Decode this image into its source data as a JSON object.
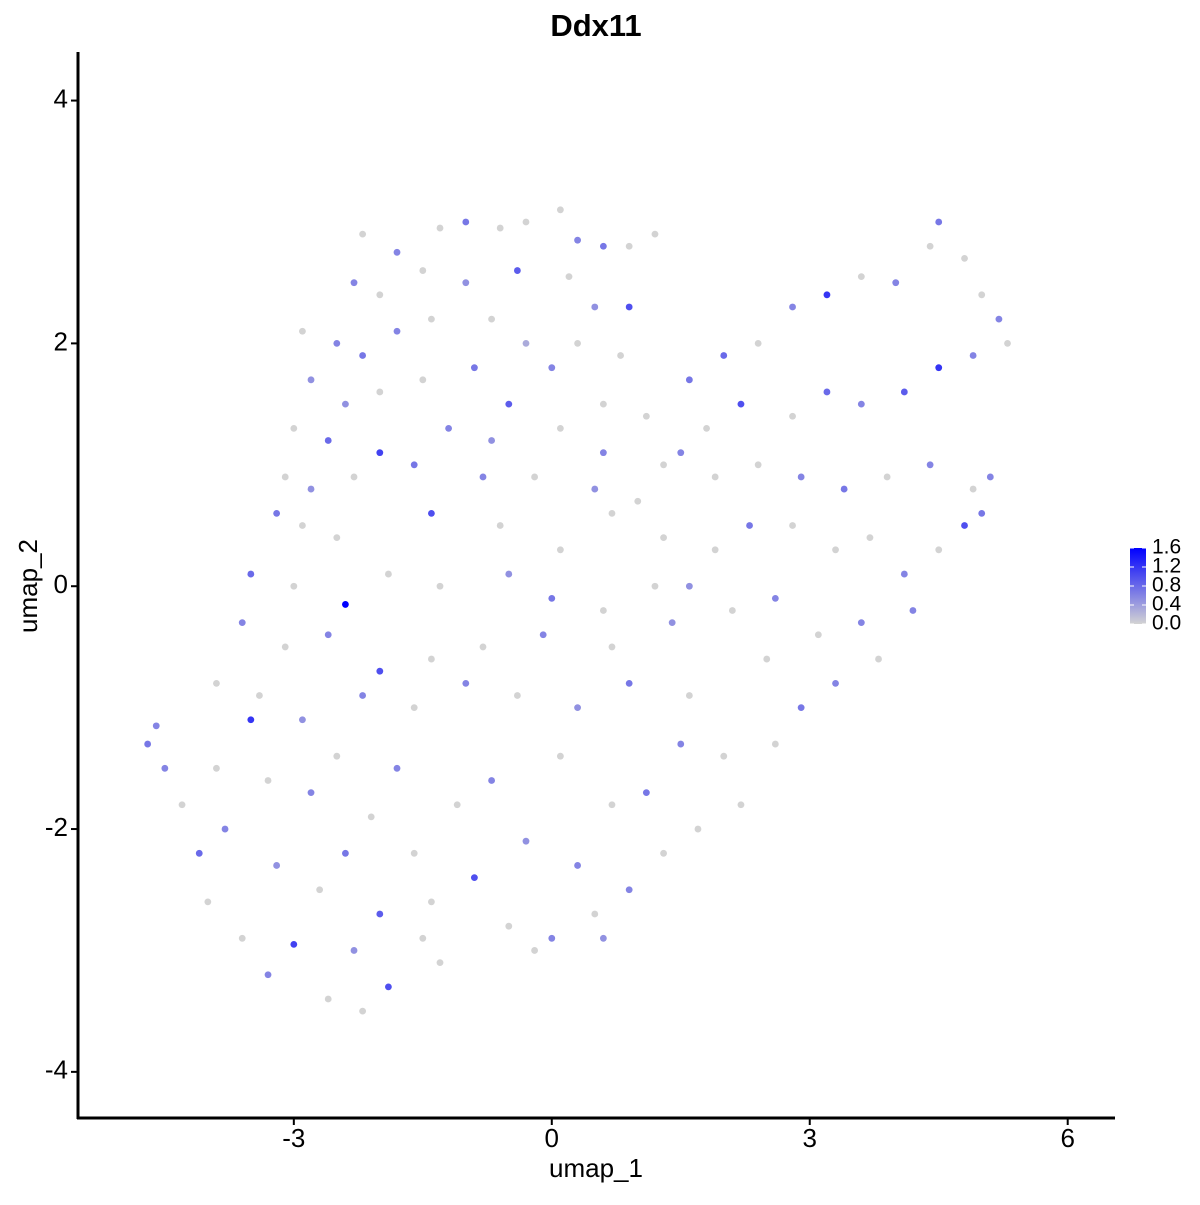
{
  "chart_data": {
    "type": "scatter",
    "title": "Ddx11",
    "x_label": "umap_1",
    "y_label": "umap_2",
    "x": [
      -2.2,
      -1.8,
      -1.3,
      -1.0,
      -0.6,
      -0.3,
      0.1,
      0.3,
      0.6,
      0.9,
      1.2,
      -2.3,
      -2.0,
      -1.5,
      -1.0,
      -0.4,
      0.2,
      0.5,
      0.9,
      -2.9,
      -2.5,
      -2.2,
      -1.8,
      -1.4,
      -0.7,
      -0.3,
      0.3,
      0.8,
      -2.8,
      -2.4,
      -2.0,
      -1.5,
      -0.9,
      -0.5,
      0.0,
      0.6,
      1.1,
      -3.0,
      -2.6,
      -2.0,
      -1.2,
      -0.7,
      0.1,
      0.6,
      1.3,
      -3.1,
      -2.8,
      -2.3,
      -1.6,
      -0.8,
      -0.2,
      0.5,
      1.0,
      -3.2,
      -2.9,
      -2.5,
      -1.4,
      -0.6,
      0.1,
      0.7,
      1.3,
      -3.5,
      -3.0,
      -2.4,
      -1.9,
      -1.3,
      -0.5,
      0.0,
      0.6,
      1.2,
      -3.6,
      -3.1,
      -2.6,
      -2.0,
      -1.4,
      -0.8,
      -0.1,
      0.7,
      1.4,
      -3.9,
      -3.4,
      -2.9,
      -2.2,
      -1.6,
      -1.0,
      -0.4,
      0.3,
      0.9,
      1.6,
      -4.7,
      -4.6,
      -4.5,
      -4.3,
      -4.1,
      -3.9,
      -3.8,
      -3.5,
      -3.3,
      -3.2,
      -3.0,
      -2.8,
      -2.7,
      -2.5,
      -2.4,
      -2.3,
      -2.1,
      -2.0,
      -1.9,
      -1.8,
      -1.6,
      -1.4,
      -1.3,
      -1.1,
      -0.9,
      -0.7,
      -0.5,
      -0.3,
      0.0,
      0.1,
      0.3,
      0.5,
      0.7,
      0.9,
      1.1,
      1.3,
      1.5,
      1.7,
      2.0,
      2.2,
      -4.0,
      -3.6,
      -3.3,
      -2.6,
      -2.2,
      -1.5,
      -0.2,
      0.6,
      1.6,
      2.0,
      2.4,
      2.8,
      3.2,
      3.6,
      4.0,
      4.4,
      4.5,
      4.8,
      5.0,
      5.2,
      5.3,
      4.9,
      4.5,
      4.1,
      3.6,
      3.2,
      2.8,
      2.2,
      1.8,
      1.5,
      1.9,
      2.4,
      2.9,
      3.4,
      3.9,
      4.4,
      4.9,
      5.1,
      5.0,
      4.8,
      4.5,
      4.1,
      3.7,
      3.3,
      2.8,
      2.3,
      1.9,
      1.6,
      2.1,
      2.6,
      3.1,
      3.6,
      4.2,
      3.8,
      3.3,
      2.9,
      2.6,
      2.5
    ],
    "y": [
      2.9,
      2.75,
      2.95,
      3.0,
      2.95,
      3.0,
      3.1,
      2.85,
      2.8,
      2.8,
      2.9,
      2.5,
      2.4,
      2.6,
      2.5,
      2.6,
      2.55,
      2.3,
      2.3,
      2.1,
      2.0,
      1.9,
      2.1,
      2.2,
      2.2,
      2.0,
      2.0,
      1.9,
      1.7,
      1.5,
      1.6,
      1.7,
      1.8,
      1.5,
      1.8,
      1.5,
      1.4,
      1.3,
      1.2,
      1.1,
      1.3,
      1.2,
      1.3,
      1.1,
      1.0,
      0.9,
      0.8,
      0.9,
      1.0,
      0.9,
      0.9,
      0.8,
      0.7,
      0.6,
      0.5,
      0.4,
      0.6,
      0.5,
      0.3,
      0.6,
      0.4,
      0.1,
      0.0,
      -0.15,
      0.1,
      0.0,
      0.1,
      -0.1,
      -0.2,
      0.0,
      -0.3,
      -0.5,
      -0.4,
      -0.7,
      -0.6,
      -0.5,
      -0.4,
      -0.5,
      -0.3,
      -0.8,
      -0.9,
      -1.1,
      -0.9,
      -1.0,
      -0.8,
      -0.9,
      -1.0,
      -0.8,
      -0.9,
      -1.3,
      -1.15,
      -1.5,
      -1.8,
      -2.2,
      -1.5,
      -2.0,
      -1.1,
      -1.6,
      -2.3,
      -2.95,
      -1.7,
      -2.5,
      -1.4,
      -2.2,
      -3.0,
      -1.9,
      -2.7,
      -3.3,
      -1.5,
      -2.2,
      -2.6,
      -3.1,
      -1.8,
      -2.4,
      -1.6,
      -2.8,
      -2.1,
      -2.9,
      -1.4,
      -2.3,
      -2.7,
      -1.8,
      -2.5,
      -1.7,
      -2.2,
      -1.3,
      -2.0,
      -1.4,
      -1.8,
      -2.6,
      -2.9,
      -3.2,
      -3.4,
      -3.5,
      -2.9,
      -3.0,
      -2.9,
      1.7,
      1.9,
      2.0,
      2.3,
      2.4,
      2.55,
      2.5,
      2.8,
      3.0,
      2.7,
      2.4,
      2.2,
      2.0,
      1.9,
      1.8,
      1.6,
      1.5,
      1.6,
      1.4,
      1.5,
      1.3,
      1.1,
      0.9,
      1.0,
      0.9,
      0.8,
      0.9,
      1.0,
      0.8,
      0.9,
      0.6,
      0.5,
      0.3,
      0.1,
      0.4,
      0.3,
      0.5,
      0.5,
      0.3,
      0.0,
      -0.2,
      -0.1,
      -0.4,
      -0.3,
      -0.2,
      -0.6,
      -0.8,
      -1.0,
      -1.3,
      -0.6
    ],
    "values": [
      0,
      0.6,
      0,
      0.7,
      0,
      0,
      0,
      0.6,
      0.7,
      0,
      0,
      0.6,
      0,
      0,
      0.5,
      0.9,
      0,
      0.5,
      1.0,
      0,
      0.6,
      0.7,
      0.6,
      0,
      0,
      0.3,
      0,
      0,
      0.5,
      0.5,
      0,
      0,
      0.7,
      0.9,
      0.6,
      0,
      0,
      0,
      0.8,
      1.1,
      0.6,
      0.5,
      0,
      0.6,
      0,
      0,
      0.5,
      0,
      0.7,
      0.6,
      0,
      0.5,
      0,
      0.7,
      0,
      0,
      1.0,
      0,
      0,
      0,
      0,
      0.8,
      0,
      1.6,
      0,
      0,
      0.5,
      0.7,
      0,
      0,
      0.6,
      0,
      0.6,
      1.0,
      0,
      0,
      0.6,
      0,
      0.5,
      0,
      0,
      0.5,
      0.6,
      0,
      0.6,
      0,
      0.5,
      0.7,
      0,
      0.7,
      0.6,
      0.6,
      0,
      0.8,
      0,
      0.6,
      1.2,
      0,
      0.5,
      1.1,
      0.6,
      0,
      0,
      0.7,
      0.5,
      0,
      0.9,
      1.0,
      0.6,
      0,
      0,
      0,
      0,
      1.0,
      0.6,
      0,
      0.5,
      0.6,
      0,
      0.6,
      0,
      0,
      0.6,
      0.7,
      0,
      0.6,
      0,
      0,
      0,
      0,
      0,
      0.6,
      0,
      0,
      0,
      0,
      0.5,
      0.7,
      0.8,
      0,
      0.6,
      1.2,
      0,
      0.6,
      0,
      0.7,
      0,
      0,
      0.6,
      0,
      0.6,
      1.2,
      0.9,
      0.6,
      0.8,
      0,
      1.0,
      0,
      0.6,
      0,
      0,
      0.6,
      0.7,
      0,
      0.6,
      0,
      0.6,
      0.7,
      1.0,
      0,
      0.6,
      0,
      0,
      0,
      0.7,
      0,
      0.5,
      0,
      0.6,
      0,
      0.6,
      0.6,
      0,
      0.6,
      0.7,
      0,
      0
    ],
    "xlim": [
      -5.51,
      6.55
    ],
    "ylim": [
      -4.38,
      4.4
    ],
    "xticks": [
      -3,
      0,
      3,
      6
    ],
    "yticks": [
      -4,
      -2,
      0,
      2,
      4
    ],
    "color_low": "#d3d3d3",
    "color_high": "#0000ff",
    "clim": [
      0,
      1.6
    ],
    "cticks": [
      {
        "value": 0,
        "label": "0.0"
      },
      {
        "value": 0.4,
        "label": "0.4"
      },
      {
        "value": 0.8,
        "label": "0.8"
      },
      {
        "value": 1.2,
        "label": "1.2"
      },
      {
        "value": 1.6,
        "label": "1.6"
      }
    ],
    "grid": false
  }
}
